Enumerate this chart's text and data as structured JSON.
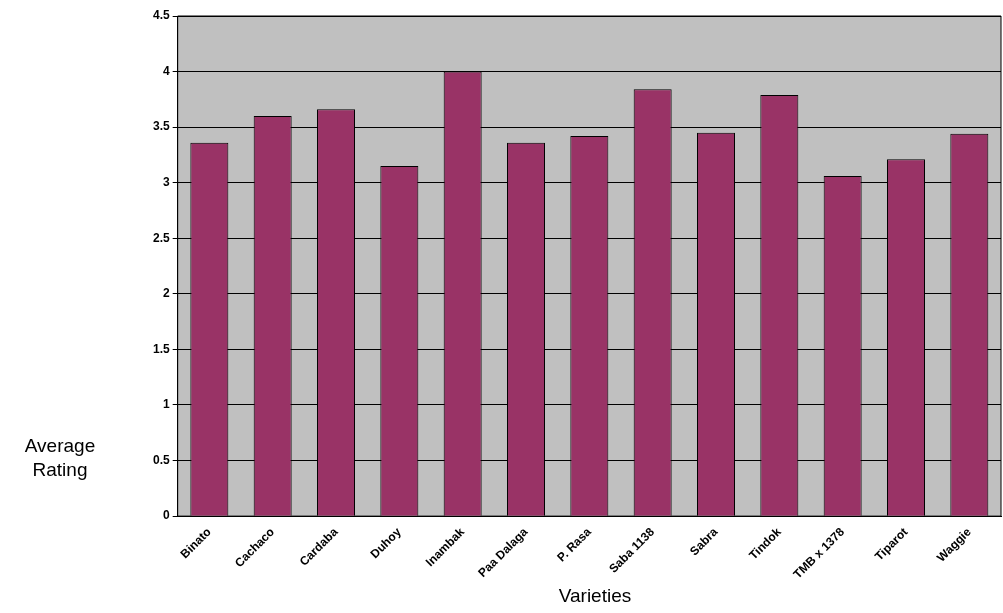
{
  "chart_data": {
    "type": "bar",
    "xlabel": "Varieties",
    "ylabel": "Average Rating",
    "categories": [
      "Binato",
      "Cachaco",
      "Cardaba",
      "Duhoy",
      "Inambak",
      "Paa Dalaga",
      "P. Rasa",
      "Saba 1138",
      "Sabra",
      "Tindok",
      "TMB x 1378",
      "Tiparot",
      "Waggie"
    ],
    "values": [
      3.36,
      3.6,
      3.66,
      3.15,
      4.0,
      3.36,
      3.42,
      3.84,
      3.45,
      3.79,
      3.06,
      3.21,
      3.44
    ],
    "color": "#993366",
    "ylim": [
      0,
      4.5
    ],
    "yticks": [
      0,
      0.5,
      1,
      1.5,
      2,
      2.5,
      3,
      3.5,
      4,
      4.5
    ],
    "grid": "y",
    "legend": false
  }
}
